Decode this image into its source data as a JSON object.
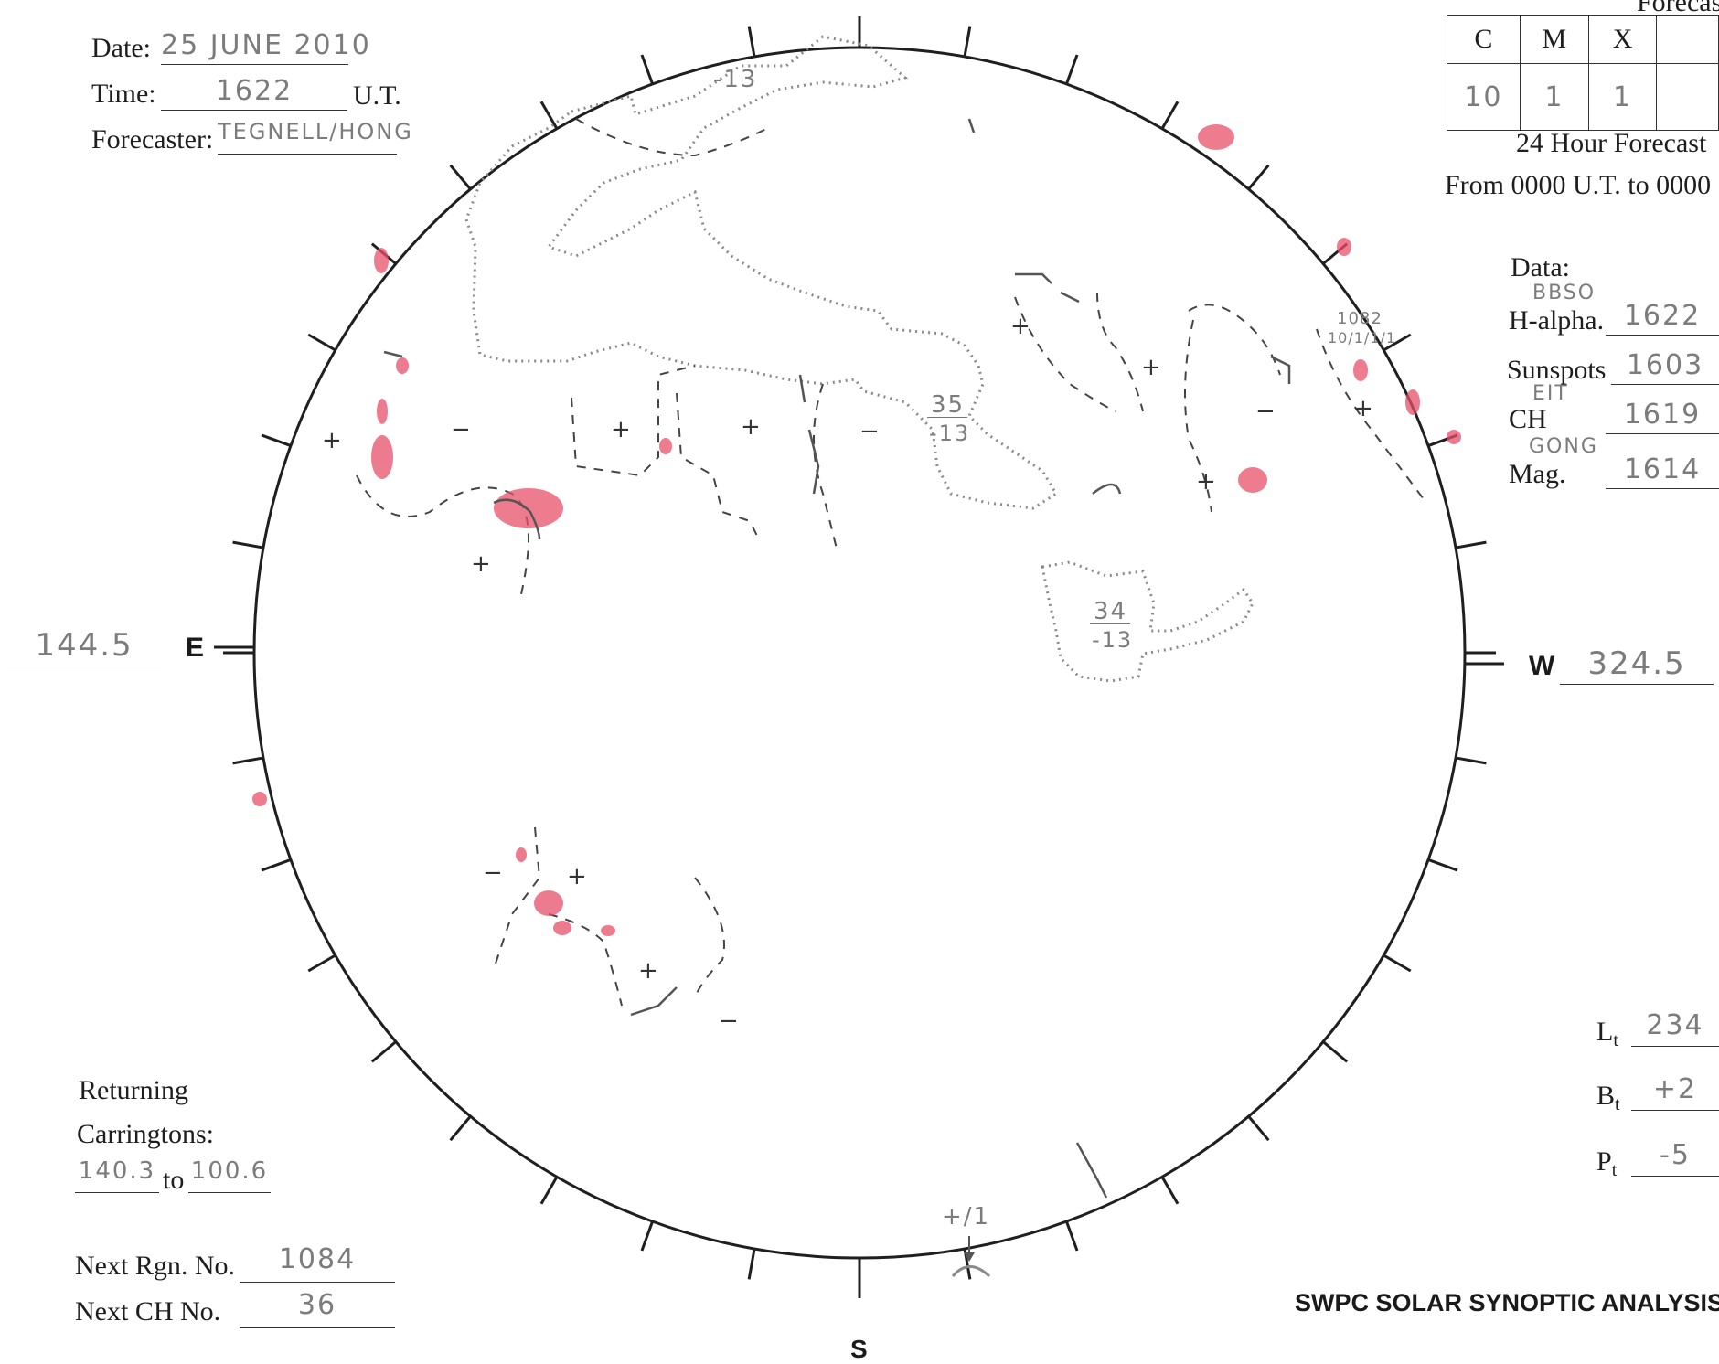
{
  "header": {
    "date_label": "Date:",
    "date_value": "25 JUNE 2010",
    "time_label": "Time:",
    "time_value": "1622",
    "time_unit": "U.T.",
    "forecaster_label": "Forecaster:",
    "forecaster_value": "TEGNELL/HONG"
  },
  "forecast": {
    "top_partial_label": "Forecast",
    "columns": [
      "C",
      "M",
      "X"
    ],
    "values": [
      "10",
      "1",
      "1"
    ],
    "caption": "24 Hour Forecast",
    "period": "From 0000 U.T. to 0000"
  },
  "data_times": {
    "title": "Data:",
    "rows": [
      {
        "source": "BBSO",
        "label": "H-alpha.",
        "value": "1622"
      },
      {
        "source": "",
        "label": "Sunspots",
        "value": "1603"
      },
      {
        "source": "EIT",
        "label": "CH",
        "value": "1619"
      },
      {
        "source": "GONG",
        "label": "Mag.",
        "value": "1614"
      }
    ]
  },
  "limbs": {
    "east_label": "E",
    "east_value": "144.5",
    "west_label": "W",
    "west_value": "324.5",
    "south_label": "S"
  },
  "orientation": {
    "lt_label": "L",
    "lt_sub": "t",
    "lt_value": "234",
    "bt_label": "B",
    "bt_sub": "t",
    "bt_value": "+2",
    "pt_label": "P",
    "pt_sub": "t",
    "pt_value": "-5"
  },
  "carrington": {
    "line1": "Returning",
    "line2": "Carringtons:",
    "from": "140.3",
    "to_label": "to",
    "to": "100.6"
  },
  "next_numbers": {
    "rgn_label": "Next Rgn. No.",
    "rgn_value": "1084",
    "ch_label": "Next CH No.",
    "ch_value": "36"
  },
  "footer": {
    "title": "SWPC SOLAR SYNOPTIC ANALYSIS"
  },
  "annotations": {
    "ch_35_top": "35",
    "ch_35_bottom": "-13",
    "ch_34_top": "34",
    "ch_34_bottom": "-13",
    "ch_top_label": "-13",
    "region_label": "1082",
    "region_class": "10/1/1/1",
    "south_label": "+/1",
    "plus": "+",
    "minus": "-"
  },
  "colors": {
    "plage": "#e8506a",
    "ink": "#2a2a2a",
    "pencil": "#7a7a7a"
  }
}
